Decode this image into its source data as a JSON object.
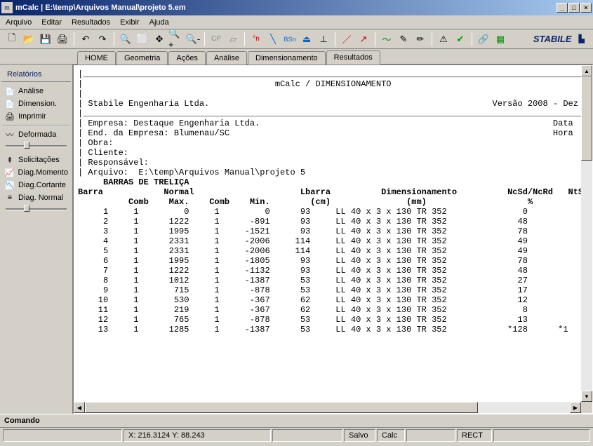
{
  "window": {
    "title": "mCalc | E:\\temp\\Arquivos Manual\\projeto 5.em"
  },
  "menu": {
    "items": [
      "Arquivo",
      "Editar",
      "Resultados",
      "Exibir",
      "Ajuda"
    ]
  },
  "brand": "STABILE",
  "tabs": {
    "items": [
      "HOME",
      "Geometria",
      "Ações",
      "Análise",
      "Dimensionamento",
      "Resultados"
    ],
    "active": 5
  },
  "sidebar": {
    "header": "Relatórios",
    "group1": [
      {
        "icon": "📄",
        "label": "Análise"
      },
      {
        "icon": "📄",
        "label": "Dimension."
      },
      {
        "icon": "🖨",
        "label": "Imprimir"
      }
    ],
    "group2": [
      {
        "icon": "〰",
        "label": "Deformada",
        "slider": true
      },
      {
        "icon": "⇞",
        "label": "Solicitações"
      },
      {
        "icon": "📈",
        "label": "Diag.Momento"
      },
      {
        "icon": "📉",
        "label": "Diag.Cortante"
      },
      {
        "icon": "≡",
        "label": "Diag. Normal",
        "slider": true
      }
    ]
  },
  "report": {
    "title_center": "mCalc / DIMENSIONAMENTO",
    "company": "Stabile Engenharia Ltda.",
    "version": "Versão 2008 - Dez",
    "fields": [
      "Empresa: Destaque Engenharia Ltda.",
      "End. da Empresa: Blumenau/SC",
      "Obra:",
      "Cliente:",
      "Responsável:",
      "Arquivo:  E:\\temp\\Arquivos Manual\\projeto 5"
    ],
    "right_fields": [
      "Data",
      "Hora"
    ],
    "section": "BARRAS DE TRELIÇA",
    "header1": "Barra            Normal                     Lbarra          Dimensionamento          NcSd/NcRd   NtSd/",
    "header2": "          Comb    Max.    Comb    Min.        (cm)               (mm)                    %",
    "rows": [
      {
        "b": "1",
        "c1": "1",
        "max": "0",
        "c2": "1",
        "min": "0",
        "l": "93",
        "dim": "LL 40 x 3 x 130 TR 352",
        "r": "0",
        "e": ""
      },
      {
        "b": "2",
        "c1": "1",
        "max": "1222",
        "c2": "1",
        "min": "-891",
        "l": "93",
        "dim": "LL 40 x 3 x 130 TR 352",
        "r": "48",
        "e": ""
      },
      {
        "b": "3",
        "c1": "1",
        "max": "1995",
        "c2": "1",
        "min": "-1521",
        "l": "93",
        "dim": "LL 40 x 3 x 130 TR 352",
        "r": "78",
        "e": ""
      },
      {
        "b": "4",
        "c1": "1",
        "max": "2331",
        "c2": "1",
        "min": "-2006",
        "l": "114",
        "dim": "LL 40 x 3 x 130 TR 352",
        "r": "49",
        "e": ""
      },
      {
        "b": "5",
        "c1": "1",
        "max": "2331",
        "c2": "1",
        "min": "-2006",
        "l": "114",
        "dim": "LL 40 x 3 x 130 TR 352",
        "r": "49",
        "e": ""
      },
      {
        "b": "6",
        "c1": "1",
        "max": "1995",
        "c2": "1",
        "min": "-1805",
        "l": "93",
        "dim": "LL 40 x 3 x 130 TR 352",
        "r": "78",
        "e": ""
      },
      {
        "b": "7",
        "c1": "1",
        "max": "1222",
        "c2": "1",
        "min": "-1132",
        "l": "93",
        "dim": "LL 40 x 3 x 130 TR 352",
        "r": "48",
        "e": ""
      },
      {
        "b": "8",
        "c1": "1",
        "max": "1012",
        "c2": "1",
        "min": "-1387",
        "l": "53",
        "dim": "LL 40 x 3 x 130 TR 352",
        "r": "27",
        "e": ""
      },
      {
        "b": "9",
        "c1": "1",
        "max": "715",
        "c2": "1",
        "min": "-878",
        "l": "53",
        "dim": "LL 40 x 3 x 130 TR 352",
        "r": "17",
        "e": ""
      },
      {
        "b": "10",
        "c1": "1",
        "max": "530",
        "c2": "1",
        "min": "-367",
        "l": "62",
        "dim": "LL 40 x 3 x 130 TR 352",
        "r": "12",
        "e": ""
      },
      {
        "b": "11",
        "c1": "1",
        "max": "219",
        "c2": "1",
        "min": "-367",
        "l": "62",
        "dim": "LL 40 x 3 x 130 TR 352",
        "r": "8",
        "e": ""
      },
      {
        "b": "12",
        "c1": "1",
        "max": "765",
        "c2": "1",
        "min": "-878",
        "l": "53",
        "dim": "LL 40 x 3 x 130 TR 352",
        "r": "13",
        "e": ""
      },
      {
        "b": "13",
        "c1": "1",
        "max": "1285",
        "c2": "1",
        "min": "-1387",
        "l": "53",
        "dim": "LL 40 x 3 x 130 TR 352",
        "r": "*128",
        "e": "*1"
      }
    ]
  },
  "command": {
    "label": "Comando"
  },
  "status": {
    "coords": "X: 216.3124  Y: 88.243",
    "cells": [
      "Salvo",
      "Calc",
      "",
      "RECT",
      ""
    ]
  }
}
